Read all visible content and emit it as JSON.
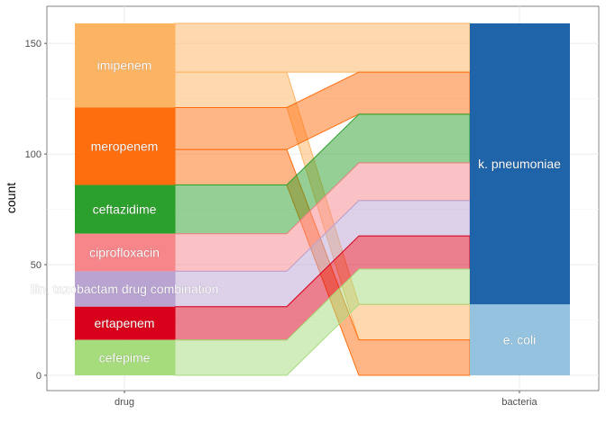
{
  "chart_data": {
    "type": "alluvial",
    "title": "",
    "xlabel": "",
    "ylabel": "count",
    "ylim": [
      0,
      160
    ],
    "yticks": [
      0,
      50,
      100,
      150
    ],
    "axes": [
      "drug",
      "bacteria"
    ],
    "grid": true,
    "legend": "none",
    "drug_strata": [
      {
        "name": "imipenem",
        "count": 38,
        "color": "#fdb462"
      },
      {
        "name": "meropenem",
        "count": 35,
        "color": "#ff6e0e"
      },
      {
        "name": "ceftazidime",
        "count": 22,
        "color": "#2ca02c"
      },
      {
        "name": "ciprofloxacin",
        "count": 17,
        "color": "#f7868b"
      },
      {
        "name": "piperacillin/tazobactam drug combination",
        "count": 16,
        "color": "#b9a3d1"
      },
      {
        "name": "ertapenem",
        "count": 15,
        "color": "#d9001b"
      },
      {
        "name": "cefepime",
        "count": 16,
        "color": "#a6dc7c"
      }
    ],
    "drug_labels_shown": {
      "imipenem": "imipenem",
      "meropenem": "meropenem",
      "ceftazidime": "ceftazidime",
      "ciprofloxacin": "ciprofloxacin",
      "piperacillin/tazobactam drug combination": "llin, tazobactam drug combination",
      "ertapenem": "ertapenem",
      "cefepime": "cefepime"
    },
    "bacteria_strata": [
      {
        "name": "k. pneumoniae",
        "count": 127,
        "color": "#1f63a8"
      },
      {
        "name": "e. coli",
        "count": 32,
        "color": "#95c3df"
      }
    ],
    "flows": [
      {
        "drug": "imipenem",
        "bacteria": "k. pneumoniae",
        "count": 22
      },
      {
        "drug": "imipenem",
        "bacteria": "e. coli",
        "count": 16
      },
      {
        "drug": "meropenem",
        "bacteria": "k. pneumoniae",
        "count": 19
      },
      {
        "drug": "meropenem",
        "bacteria": "e. coli",
        "count": 16
      },
      {
        "drug": "ceftazidime",
        "bacteria": "k. pneumoniae",
        "count": 22
      },
      {
        "drug": "ciprofloxacin",
        "bacteria": "k. pneumoniae",
        "count": 17
      },
      {
        "drug": "piperacillin/tazobactam drug combination",
        "bacteria": "k. pneumoniae",
        "count": 16
      },
      {
        "drug": "ertapenem",
        "bacteria": "k. pneumoniae",
        "count": 15
      },
      {
        "drug": "cefepime",
        "bacteria": "k. pneumoniae",
        "count": 16
      }
    ]
  }
}
